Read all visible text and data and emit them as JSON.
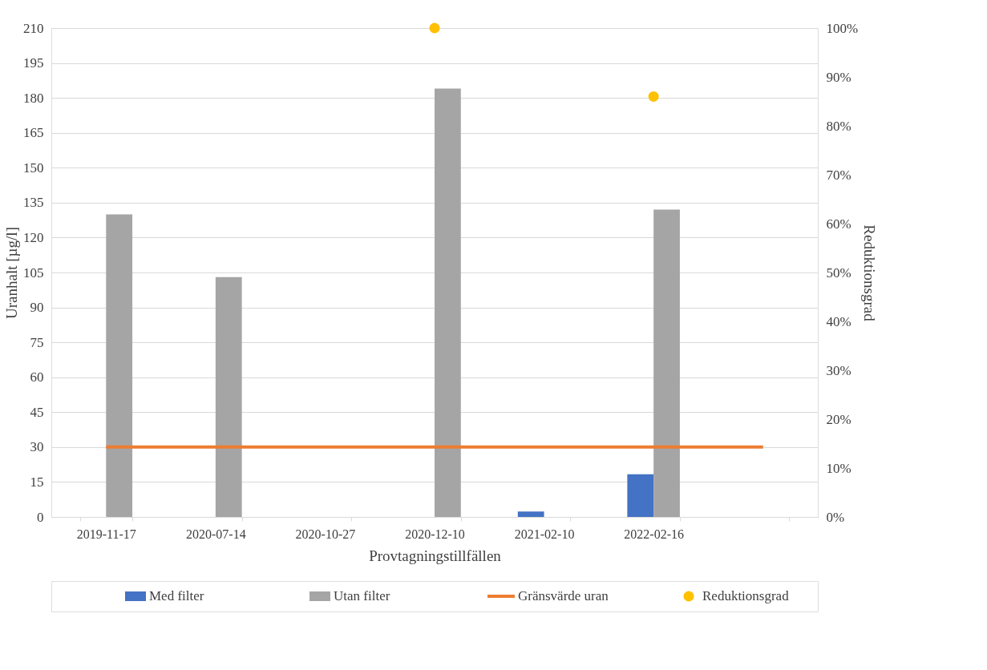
{
  "chart_data": {
    "type": "bar",
    "xlabel": "Provtagningstillfällen",
    "ylabel": "Uranhalt [µg/l]",
    "y2label": "Reduktionsgrad",
    "categories": [
      "2019-11-17",
      "2020-07-14",
      "2020-10-27",
      "2020-12-10",
      "2021-02-10",
      "2022-02-16",
      null
    ],
    "series": [
      {
        "name": "Med filter",
        "color": "#4472c4",
        "values": [
          null,
          null,
          null,
          null,
          2.3,
          18.3,
          null
        ]
      },
      {
        "name": "Utan filter",
        "color": "#a5a5a5",
        "values": [
          130,
          103,
          null,
          184,
          null,
          132,
          null
        ]
      },
      {
        "name": "Gränsvärde uran",
        "type": "line",
        "color": "#ed7d31",
        "values": [
          30,
          30,
          30,
          30,
          30,
          30,
          30
        ]
      },
      {
        "name": "Reduktionsgrad",
        "type": "scatter",
        "marker": "circle",
        "axis": "y2",
        "color": "#ffc000",
        "values": [
          null,
          null,
          null,
          100,
          null,
          86,
          null
        ]
      }
    ],
    "ylim": [
      0,
      210
    ],
    "yticks": [
      0,
      15,
      30,
      45,
      60,
      75,
      90,
      105,
      120,
      135,
      150,
      165,
      180,
      195,
      210
    ],
    "y2lim": [
      0,
      100
    ],
    "y2ticks": [
      {
        "value": 0,
        "label": "0%"
      },
      {
        "value": 10,
        "label": "10%"
      },
      {
        "value": 20,
        "label": "20%"
      },
      {
        "value": 30,
        "label": "30%"
      },
      {
        "value": 40,
        "label": "40%"
      },
      {
        "value": 50,
        "label": "50%"
      },
      {
        "value": 60,
        "label": "60%"
      },
      {
        "value": 70,
        "label": "70%"
      },
      {
        "value": 80,
        "label": "80%"
      },
      {
        "value": 90,
        "label": "90%"
      },
      {
        "value": 100,
        "label": "100%"
      }
    ],
    "grid": "y",
    "legend": "bottom"
  }
}
